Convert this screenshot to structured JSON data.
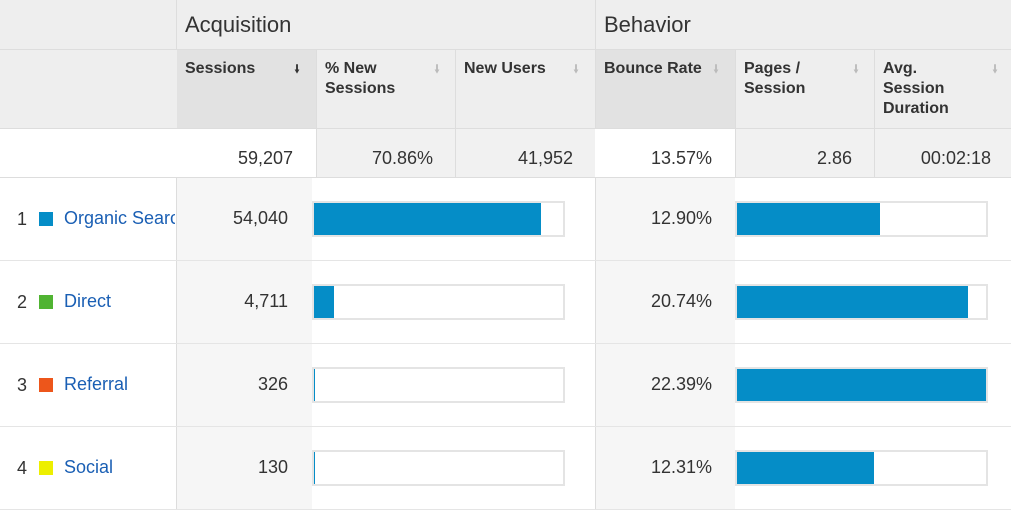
{
  "groups": {
    "acquisition": "Acquisition",
    "behavior": "Behavior"
  },
  "columns": {
    "sessions": "Sessions",
    "pct_new_sessions": "% New Sessions",
    "new_users": "New Users",
    "bounce_rate": "Bounce Rate",
    "pages_session": "Pages / Session",
    "avg_session_duration": "Avg. Session Duration"
  },
  "totals": {
    "sessions": "59,207",
    "pct_new_sessions": "70.86%",
    "new_users": "41,952",
    "bounce_rate": "13.57%",
    "pages_session": "2.86",
    "avg_session_duration": "00:02:18"
  },
  "rows": [
    {
      "index": "1",
      "channel": "Organic Search",
      "color": "#058dc7",
      "sessions": "54,040",
      "sessions_share": 0.9127,
      "bounce_rate": "12.90%",
      "bounce_share": 0.5762
    },
    {
      "index": "2",
      "channel": "Direct",
      "color": "#50b432",
      "sessions": "4,711",
      "sessions_share": 0.0796,
      "bounce_rate": "20.74%",
      "bounce_share": 0.9263
    },
    {
      "index": "3",
      "channel": "Referral",
      "color": "#ed561b",
      "sessions": "326",
      "sessions_share": 0.0055,
      "bounce_rate": "22.39%",
      "bounce_share": 1.0
    },
    {
      "index": "4",
      "channel": "Social",
      "color": "#edef00",
      "sessions": "130",
      "sessions_share": 0.0022,
      "bounce_rate": "12.31%",
      "bounce_share": 0.5498
    }
  ],
  "icons": {
    "sort_active": "arrow-down-icon",
    "sort_inactive": "arrow-down-icon"
  }
}
